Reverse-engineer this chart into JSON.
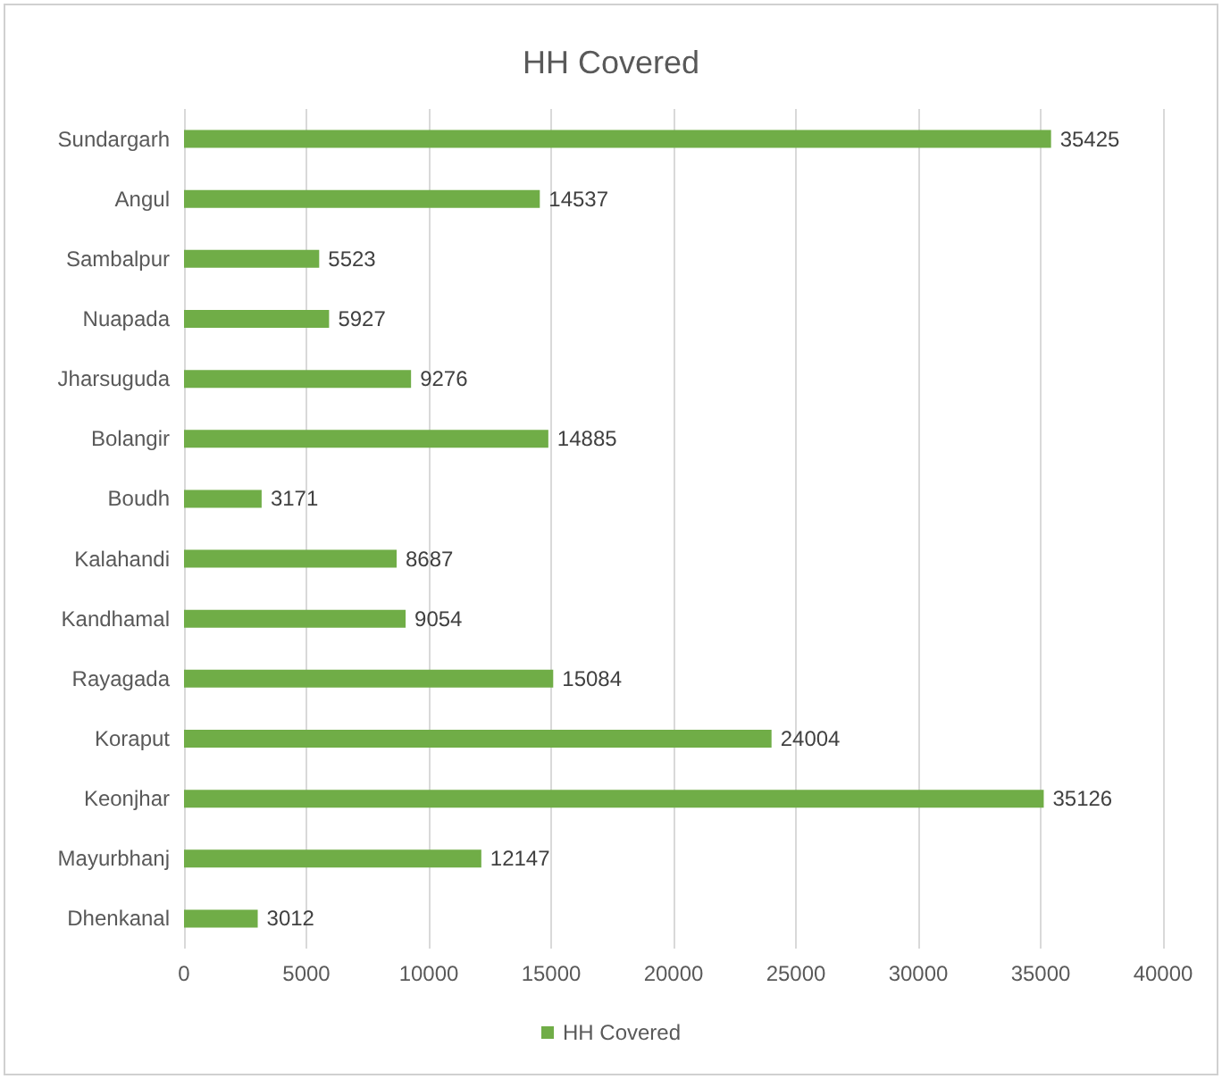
{
  "chart_data": {
    "type": "bar",
    "orientation": "horizontal",
    "title": "HH Covered",
    "categories": [
      "Sundargarh",
      "Angul",
      "Sambalpur",
      "Nuapada",
      "Jharsuguda",
      "Bolangir",
      "Boudh",
      "Kalahandi",
      "Kandhamal",
      "Rayagada",
      "Koraput",
      "Keonjhar",
      "Mayurbhanj",
      "Dhenkanal"
    ],
    "series": [
      {
        "name": "HH Covered",
        "color": "#70ad47",
        "values": [
          35425,
          14537,
          5523,
          5927,
          9276,
          14885,
          3171,
          8687,
          9054,
          15084,
          24004,
          35126,
          12147,
          3012
        ]
      }
    ],
    "xlim": [
      0,
      40000
    ],
    "xticks": [
      0,
      5000,
      10000,
      15000,
      20000,
      25000,
      30000,
      35000,
      40000
    ],
    "grid": "x",
    "legend": "bottom",
    "data_labels": true
  }
}
